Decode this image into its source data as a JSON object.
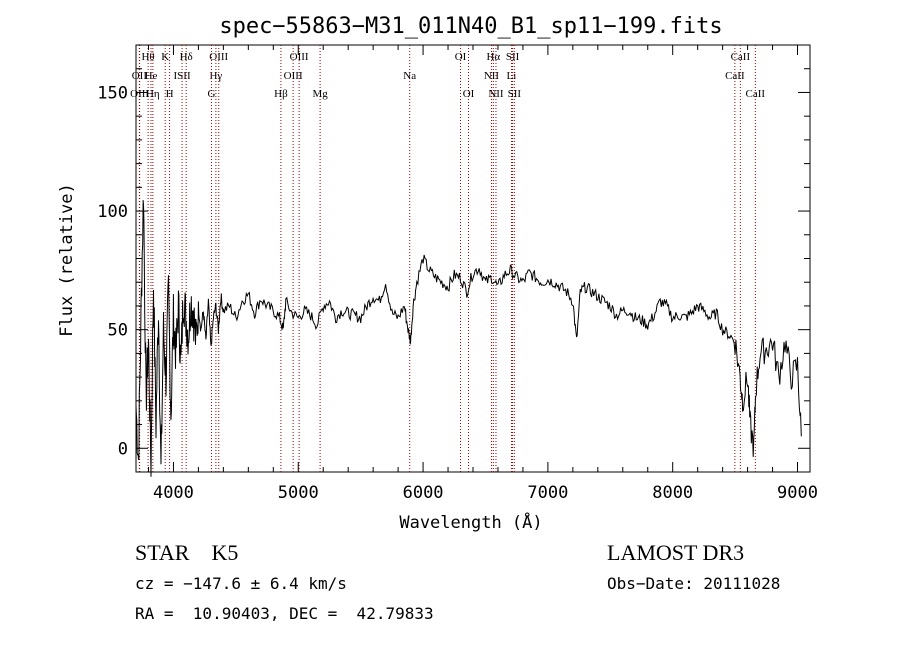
{
  "chart_data": {
    "type": "line",
    "title": "spec−55863−M31_011N40_B1_sp11−199.fits",
    "xlabel": "Wavelength (Å)",
    "ylabel": "Flux (relative)",
    "xlim": [
      3700,
      9100
    ],
    "ylim": [
      -10,
      170
    ],
    "x_ticks": [
      4000,
      5000,
      6000,
      7000,
      8000,
      9000
    ],
    "y_ticks": [
      0,
      50,
      100,
      150
    ],
    "grid": false,
    "line_color": "#000000",
    "marker_color": "#a00000",
    "series": [
      {
        "x": [
          3700,
          3720,
          3740,
          3760,
          3780,
          3800,
          3820,
          3840,
          3860,
          3880,
          3900,
          3920,
          3940,
          3960,
          3980,
          4000,
          4020,
          4040,
          4060,
          4080,
          4100,
          4120,
          4140,
          4160,
          4180,
          4200,
          4220,
          4240,
          4260,
          4280,
          4300,
          4320,
          4340,
          4360,
          4380,
          4400,
          4450,
          4500,
          4550,
          4600,
          4650,
          4700,
          4750,
          4800,
          4850,
          4880,
          4900,
          4950,
          5000,
          5050,
          5100,
          5150,
          5200,
          5250,
          5300,
          5350,
          5400,
          5450,
          5500,
          5550,
          5600,
          5650,
          5700,
          5750,
          5800,
          5850,
          5880,
          5900,
          5920,
          5950,
          6000,
          6050,
          6100,
          6150,
          6200,
          6250,
          6300,
          6350,
          6400,
          6450,
          6500,
          6550,
          6600,
          6650,
          6700,
          6750,
          6800,
          6850,
          6900,
          6950,
          7000,
          7050,
          7100,
          7150,
          7200,
          7230,
          7260,
          7300,
          7350,
          7400,
          7450,
          7500,
          7550,
          7600,
          7650,
          7700,
          7750,
          7800,
          7850,
          7900,
          7950,
          8000,
          8050,
          8100,
          8150,
          8200,
          8250,
          8300,
          8350,
          8400,
          8450,
          8500,
          8540,
          8560,
          8600,
          8620,
          8650,
          8665,
          8700,
          8750,
          8800,
          8850,
          8900,
          8950,
          9000,
          9030
        ],
        "y": [
          18,
          -5,
          55,
          110,
          20,
          45,
          -8,
          70,
          10,
          60,
          -10,
          50,
          30,
          65,
          15,
          55,
          40,
          60,
          35,
          65,
          55,
          48,
          62,
          58,
          45,
          60,
          50,
          58,
          45,
          62,
          42,
          55,
          60,
          50,
          64,
          58,
          60,
          55,
          62,
          65,
          57,
          63,
          60,
          58,
          55,
          50,
          62,
          57,
          55,
          58,
          56,
          52,
          60,
          62,
          55,
          58,
          57,
          56,
          55,
          60,
          64,
          62,
          70,
          57,
          55,
          60,
          50,
          45,
          60,
          70,
          80,
          75,
          72,
          70,
          68,
          73,
          72,
          66,
          74,
          76,
          70,
          72,
          68,
          73,
          75,
          72,
          70,
          74,
          72,
          70,
          71,
          70,
          68,
          66,
          62,
          45,
          66,
          68,
          66,
          64,
          62,
          60,
          56,
          58,
          58,
          55,
          54,
          52,
          56,
          62,
          60,
          55,
          56,
          55,
          57,
          60,
          58,
          55,
          57,
          50,
          48,
          45,
          30,
          20,
          30,
          10,
          0,
          25,
          40,
          42,
          45,
          30,
          45,
          30,
          35,
          5
        ]
      }
    ],
    "markers": [
      {
        "label": "Hθ",
        "x": 3797,
        "row": 0
      },
      {
        "label": "OII",
        "x": 3727,
        "row": 1
      },
      {
        "label": "OIII",
        "x": 3729,
        "row": 2
      },
      {
        "label": "He",
        "x": 3820,
        "row": 1
      },
      {
        "label": "Hη",
        "x": 3835,
        "row": 2
      },
      {
        "label": "K",
        "x": 3934,
        "row": 0
      },
      {
        "label": "H",
        "x": 3969,
        "row": 2
      },
      {
        "label": "ISII",
        "x": 4069,
        "row": 1
      },
      {
        "label": "Hδ",
        "x": 4102,
        "row": 0
      },
      {
        "label": "OIII",
        "x": 4363,
        "row": 0
      },
      {
        "label": "Hγ",
        "x": 4340,
        "row": 1
      },
      {
        "label": "G",
        "x": 4305,
        "row": 2
      },
      {
        "label": "Hβ",
        "x": 4861,
        "row": 2
      },
      {
        "label": "OIII",
        "x": 5007,
        "row": 0
      },
      {
        "label": "OIII",
        "x": 4959,
        "row": 1
      },
      {
        "label": "Mg",
        "x": 5175,
        "row": 2
      },
      {
        "label": "Na",
        "x": 5893,
        "row": 1
      },
      {
        "label": "OI",
        "x": 6300,
        "row": 0
      },
      {
        "label": "OI",
        "x": 6364,
        "row": 2
      },
      {
        "label": "Hα",
        "x": 6563,
        "row": 0
      },
      {
        "label": "NII",
        "x": 6548,
        "row": 1
      },
      {
        "label": "NII",
        "x": 6584,
        "row": 2
      },
      {
        "label": "SII",
        "x": 6717,
        "row": 0
      },
      {
        "label": "Li",
        "x": 6708,
        "row": 1
      },
      {
        "label": "SII",
        "x": 6731,
        "row": 2
      },
      {
        "label": "CaII",
        "x": 8542,
        "row": 0
      },
      {
        "label": "CaII",
        "x": 8498,
        "row": 1
      },
      {
        "label": "CaII",
        "x": 8662,
        "row": 2
      }
    ]
  },
  "info": {
    "class_line": "STAR    K5",
    "survey": "LAMOST DR3",
    "cz_line": "cz = −147.6 ± 6.4 km/s",
    "obs_date": "Obs−Date: 20111028",
    "coords": "RA =  10.90403, DEC =  42.79833"
  }
}
